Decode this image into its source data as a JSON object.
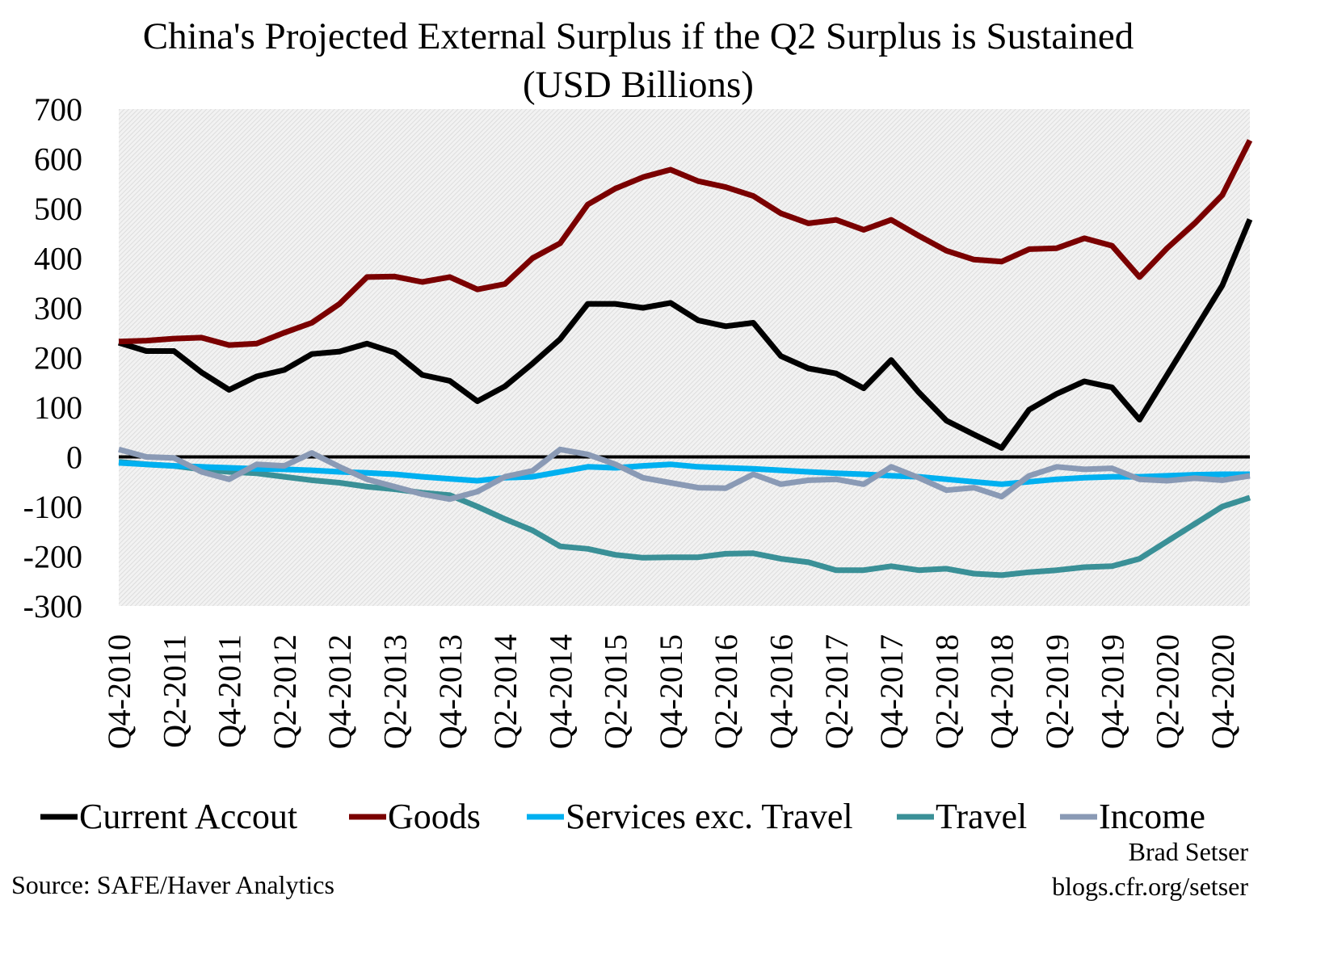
{
  "chart_data": {
    "type": "line",
    "title": "China's Projected External Surplus if the Q2 Surplus is Sustained",
    "subtitle": "(USD Billions)",
    "ylim": [
      -300,
      700
    ],
    "yticks": [
      700,
      600,
      500,
      400,
      300,
      200,
      100,
      0,
      -100,
      -200,
      -300
    ],
    "xtick_labels": [
      "Q4-2010",
      "Q2-2011",
      "Q4-2011",
      "Q2-2012",
      "Q4-2012",
      "Q2-2013",
      "Q4-2013",
      "Q2-2014",
      "Q4-2014",
      "Q2-2015",
      "Q4-2015",
      "Q2-2016",
      "Q4-2016",
      "Q2-2017",
      "Q4-2017",
      "Q2-2018",
      "Q4-2018",
      "Q2-2019",
      "Q4-2019",
      "Q2-2020",
      "Q4-2020"
    ],
    "x": [
      "Q4-2010",
      "Q1-2011",
      "Q2-2011",
      "Q3-2011",
      "Q4-2011",
      "Q1-2012",
      "Q2-2012",
      "Q3-2012",
      "Q4-2012",
      "Q1-2013",
      "Q2-2013",
      "Q3-2013",
      "Q4-2013",
      "Q1-2014",
      "Q2-2014",
      "Q3-2014",
      "Q4-2014",
      "Q1-2015",
      "Q2-2015",
      "Q3-2015",
      "Q4-2015",
      "Q1-2016",
      "Q2-2016",
      "Q3-2016",
      "Q4-2016",
      "Q1-2017",
      "Q2-2017",
      "Q3-2017",
      "Q4-2017",
      "Q1-2018",
      "Q2-2018",
      "Q3-2018",
      "Q4-2018",
      "Q1-2019",
      "Q2-2019",
      "Q3-2019",
      "Q4-2019",
      "Q1-2020",
      "Q2-2020",
      "Q3-2020",
      "Q4-2020",
      "Q1-2021"
    ],
    "grid": false,
    "legend_position": "bottom",
    "series": [
      {
        "name": "Current Accout",
        "color": "#000000",
        "values": [
          230,
          213,
          213,
          170,
          135,
          162,
          175,
          207,
          212,
          228,
          210,
          165,
          153,
          112,
          142,
          188,
          237,
          308,
          308,
          300,
          310,
          275,
          263,
          270,
          203,
          178,
          168,
          138,
          195,
          130,
          73,
          45,
          18,
          95,
          127,
          152,
          140,
          75,
          165,
          255,
          345,
          478
        ]
      },
      {
        "name": "Goods",
        "color": "#7a0000",
        "values": [
          232,
          234,
          238,
          240,
          225,
          228,
          250,
          270,
          308,
          362,
          363,
          352,
          362,
          337,
          348,
          400,
          430,
          508,
          540,
          563,
          578,
          555,
          543,
          525,
          490,
          470,
          477,
          457,
          477,
          445,
          415,
          397,
          393,
          418,
          420,
          440,
          425,
          362,
          420,
          470,
          527,
          637
        ]
      },
      {
        "name": "Services exc. Travel",
        "color": "#00b0f0",
        "values": [
          -12,
          -15,
          -18,
          -20,
          -22,
          -24,
          -25,
          -27,
          -30,
          -32,
          -35,
          -40,
          -44,
          -48,
          -42,
          -40,
          -30,
          -20,
          -22,
          -18,
          -15,
          -20,
          -22,
          -24,
          -27,
          -30,
          -33,
          -35,
          -38,
          -40,
          -45,
          -50,
          -55,
          -50,
          -45,
          -42,
          -40,
          -40,
          -38,
          -36,
          -35,
          -35
        ]
      },
      {
        "name": "Travel",
        "color": "#3a9097",
        "values": [
          -10,
          -15,
          -18,
          -25,
          -30,
          -33,
          -40,
          -47,
          -52,
          -60,
          -65,
          -72,
          -77,
          -100,
          -125,
          -148,
          -180,
          -185,
          -197,
          -203,
          -202,
          -202,
          -195,
          -194,
          -205,
          -212,
          -228,
          -228,
          -220,
          -228,
          -225,
          -235,
          -238,
          -232,
          -228,
          -222,
          -220,
          -205,
          -170,
          -135,
          -100,
          -82
        ]
      },
      {
        "name": "Income",
        "color": "#8a9ab5",
        "values": [
          15,
          0,
          -2,
          -30,
          -45,
          -15,
          -18,
          8,
          -20,
          -45,
          -60,
          -75,
          -85,
          -70,
          -40,
          -28,
          15,
          5,
          -15,
          -42,
          -52,
          -62,
          -63,
          -35,
          -55,
          -47,
          -45,
          -55,
          -20,
          -42,
          -67,
          -62,
          -80,
          -38,
          -20,
          -25,
          -23,
          -45,
          -48,
          -43,
          -47,
          -38
        ]
      }
    ],
    "annotations": {
      "author": "Brad Setser",
      "url": "blogs.cfr.org/setser",
      "source": "Source: SAFE/Haver Analytics"
    }
  }
}
